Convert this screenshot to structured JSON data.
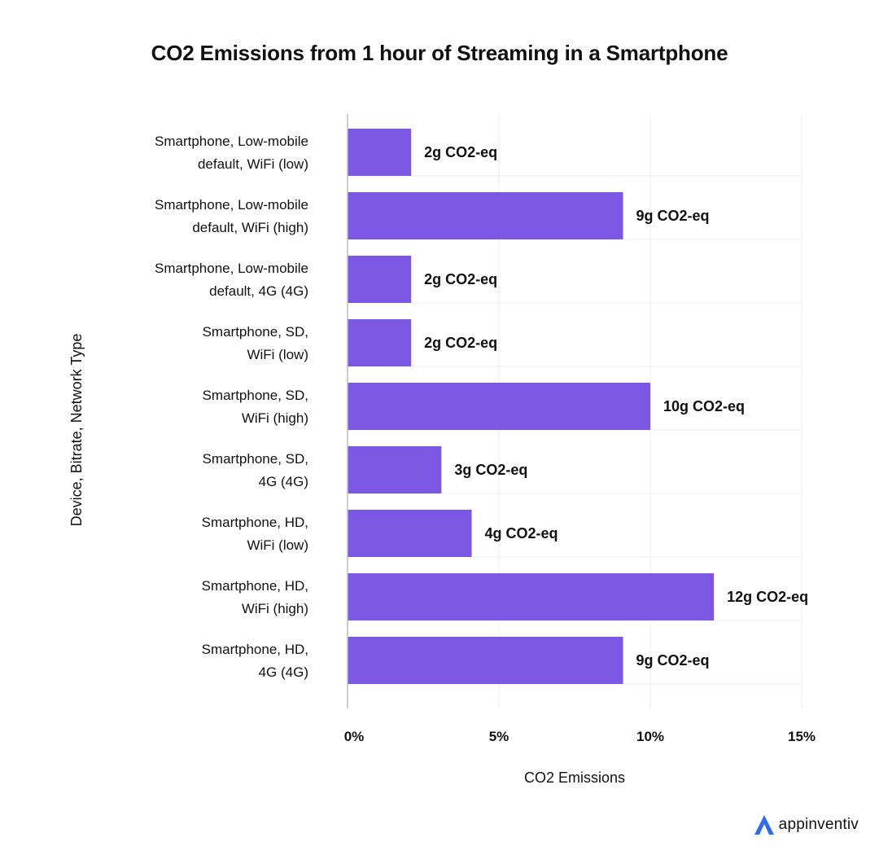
{
  "chart_data": {
    "type": "bar",
    "orientation": "horizontal",
    "title": "CO2 Emissions from 1 hour of Streaming in a Smartphone",
    "xlabel": "CO2 Emissions",
    "ylabel": "Device, Bitrate, Network Type",
    "categories": [
      [
        "Smartphone, Low-mobile",
        "default, WiFi (low)"
      ],
      [
        "Smartphone, Low-mobile",
        "default, WiFi (high)"
      ],
      [
        "Smartphone, Low-mobile",
        "default, 4G (4G)"
      ],
      [
        "Smartphone, SD,",
        "WiFi (low)"
      ],
      [
        "Smartphone, SD,",
        "WiFi (high)"
      ],
      [
        "Smartphone, SD,",
        "4G (4G)"
      ],
      [
        "Smartphone, HD,",
        "WiFi (low)"
      ],
      [
        "Smartphone, HD,",
        "WiFi (high)"
      ],
      [
        "Smartphone, HD,",
        "4G (4G)"
      ]
    ],
    "values": [
      2.1,
      9.1,
      2.1,
      2.1,
      10.0,
      3.1,
      4.1,
      12.1,
      9.1
    ],
    "data_labels": [
      "2g CO2-eq",
      "9g CO2-eq",
      "2g CO2-eq",
      "2g CO2-eq",
      "10g CO2-eq",
      "3g CO2-eq",
      "4g CO2-eq",
      "12g CO2-eq",
      "9g CO2-eq"
    ],
    "xlim": [
      0,
      15
    ],
    "xticks": [
      0,
      5,
      10,
      15
    ],
    "xtick_labels": [
      "0%",
      "5%",
      "10%",
      "15%"
    ],
    "grid": true,
    "bar_color": "#7b57e4",
    "grid_color": "#ececf0"
  },
  "brand": {
    "name": "appinventiv",
    "logo_color": "#2f6bf0"
  }
}
